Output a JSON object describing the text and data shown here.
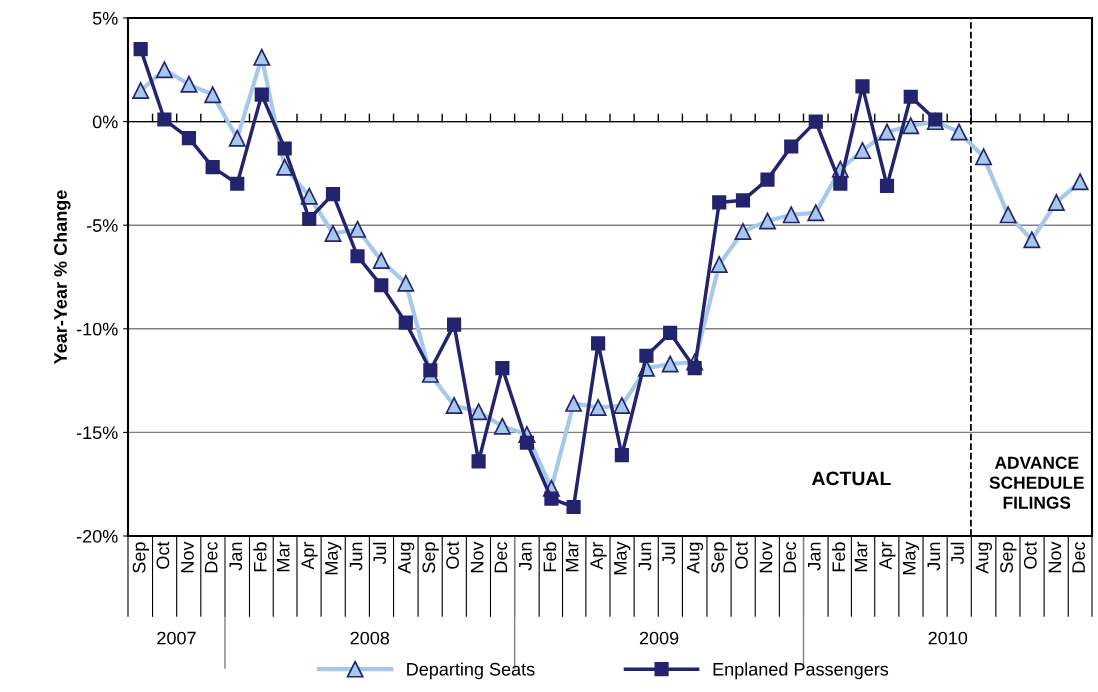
{
  "chart_data": {
    "type": "line",
    "ylabel": "Year-Year % Change",
    "x": [
      "2007-09",
      "2007-10",
      "2007-11",
      "2007-12",
      "2008-01",
      "2008-02",
      "2008-03",
      "2008-04",
      "2008-05",
      "2008-06",
      "2008-07",
      "2008-08",
      "2008-09",
      "2008-10",
      "2008-11",
      "2008-12",
      "2009-01",
      "2009-02",
      "2009-03",
      "2009-04",
      "2009-05",
      "2009-06",
      "2009-07",
      "2009-08",
      "2009-09",
      "2009-10",
      "2009-11",
      "2009-12",
      "2010-01",
      "2010-02",
      "2010-03",
      "2010-04",
      "2010-05",
      "2010-06",
      "2010-07",
      "2010-08",
      "2010-09",
      "2010-10",
      "2010-11",
      "2010-12"
    ],
    "xlim": [
      "2007-08-16",
      "2010-12-16"
    ],
    "xticks": [
      {
        "value": "2007-09",
        "label": "Sep"
      },
      {
        "value": "2007-10",
        "label": "Oct"
      },
      {
        "value": "2007-11",
        "label": "Nov"
      },
      {
        "value": "2007-12",
        "label": "Dec"
      },
      {
        "value": "2008-01",
        "label": "Jan"
      },
      {
        "value": "2008-02",
        "label": "Feb"
      },
      {
        "value": "2008-03",
        "label": "Mar"
      },
      {
        "value": "2008-04",
        "label": "Apr"
      },
      {
        "value": "2008-05",
        "label": "May"
      },
      {
        "value": "2008-06",
        "label": "Jun"
      },
      {
        "value": "2008-07",
        "label": "Jul"
      },
      {
        "value": "2008-08",
        "label": "Aug"
      },
      {
        "value": "2008-09",
        "label": "Sep"
      },
      {
        "value": "2008-10",
        "label": "Oct"
      },
      {
        "value": "2008-11",
        "label": "Nov"
      },
      {
        "value": "2008-12",
        "label": "Dec"
      },
      {
        "value": "2009-01",
        "label": "Jan"
      },
      {
        "value": "2009-02",
        "label": "Feb"
      },
      {
        "value": "2009-03",
        "label": "Mar"
      },
      {
        "value": "2009-04",
        "label": "Apr"
      },
      {
        "value": "2009-05",
        "label": "May"
      },
      {
        "value": "2009-06",
        "label": "Jun"
      },
      {
        "value": "2009-07",
        "label": "Jul"
      },
      {
        "value": "2009-08",
        "label": "Aug"
      },
      {
        "value": "2009-09",
        "label": "Sep"
      },
      {
        "value": "2009-10",
        "label": "Oct"
      },
      {
        "value": "2009-11",
        "label": "Nov"
      },
      {
        "value": "2009-12",
        "label": "Dec"
      },
      {
        "value": "2010-01",
        "label": "Jan"
      },
      {
        "value": "2010-02",
        "label": "Feb"
      },
      {
        "value": "2010-03",
        "label": "Mar"
      },
      {
        "value": "2010-04",
        "label": "Apr"
      },
      {
        "value": "2010-05",
        "label": "May"
      },
      {
        "value": "2010-06",
        "label": "Jun"
      },
      {
        "value": "2010-07",
        "label": "Jul"
      },
      {
        "value": "2010-08",
        "label": "Aug"
      },
      {
        "value": "2010-09",
        "label": "Sep"
      },
      {
        "value": "2010-10",
        "label": "Oct"
      },
      {
        "value": "2010-11",
        "label": "Nov"
      },
      {
        "value": "2010-12",
        "label": "Dec"
      }
    ],
    "series": [
      {
        "name": "Departing Seats",
        "color": "#a6c8ea",
        "marker": "triangle",
        "values": [
          1.5,
          2.5,
          1.8,
          1.3,
          -0.8,
          3.1,
          -2.2,
          -3.6,
          -5.4,
          -5.2,
          -6.7,
          -7.8,
          -12.2,
          -13.7,
          -14.0,
          -14.7,
          -15.1,
          -17.7,
          -13.6,
          -13.8,
          -13.7,
          -11.9,
          -11.7,
          -11.6,
          -6.9,
          -5.3,
          -4.8,
          -4.5,
          -4.4,
          -2.3,
          -1.4,
          -0.5,
          -0.2,
          0.0,
          -0.5,
          -1.7,
          -4.5,
          -5.7,
          -3.9,
          -2.9
        ]
      },
      {
        "name": "Enplaned Passengers",
        "color": "#23236e",
        "marker": "square",
        "values": [
          3.5,
          0.1,
          -0.8,
          -2.2,
          -3.0,
          1.3,
          -1.3,
          -4.7,
          -3.5,
          -6.5,
          -7.9,
          -9.7,
          -12.0,
          -9.8,
          -16.4,
          -11.9,
          -15.5,
          -18.2,
          -18.6,
          -10.7,
          -16.1,
          -11.3,
          -10.2,
          -11.9,
          -3.9,
          -3.8,
          -2.8,
          -1.2,
          0.0,
          -3.0,
          1.7,
          -3.1,
          1.2,
          0.1,
          null,
          null,
          null,
          null,
          null,
          null
        ]
      }
    ],
    "ylim": [
      -20,
      5
    ],
    "yticks": [
      {
        "value": -20,
        "label": "-20%"
      },
      {
        "value": -15,
        "label": "-15%"
      },
      {
        "value": -10,
        "label": "-10%"
      },
      {
        "value": -5,
        "label": "-5%"
      },
      {
        "value": 0,
        "label": "0%"
      },
      {
        "value": 5,
        "label": "5%"
      }
    ],
    "ref_lines": [
      {
        "axis": "x",
        "value": "2010-07-16",
        "color": "#000000",
        "line_style": "dashed"
      }
    ],
    "annotations": [
      "2007",
      "2008",
      "2009",
      "2010",
      "ACTUAL",
      "ADVANCE\nSCHEDULE\nFILINGS"
    ],
    "grid": "y",
    "legend": "bottom",
    "line_style": "solid"
  }
}
